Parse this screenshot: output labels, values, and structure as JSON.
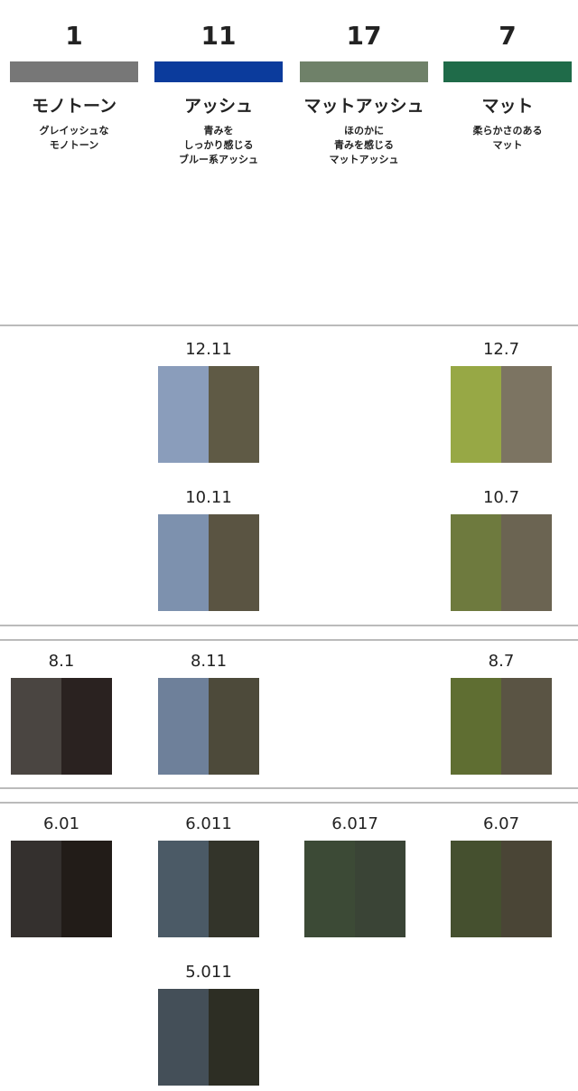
{
  "columns": [
    {
      "number": "1",
      "color": "#777777",
      "name": "モノトーン",
      "description": [
        "グレイッシュな",
        "モノトーン"
      ]
    },
    {
      "number": "11",
      "color": "#0b3b9c",
      "name": "アッシュ",
      "description": [
        "青みを",
        "しっかり感じる",
        "ブルー系アッシュ"
      ]
    },
    {
      "number": "17",
      "color": "#6f8169",
      "name": "マットアッシュ",
      "description": [
        "ほのかに",
        "青みを感じる",
        "マットアッシュ"
      ]
    },
    {
      "number": "7",
      "color": "#1f6b49",
      "name": "マット",
      "description": [
        "柔らかさのある",
        "マット"
      ]
    }
  ],
  "sections": [
    {
      "rows": [
        [
          null,
          {
            "label": "12.11",
            "colors": [
              "#8a9dbb",
              "#5f5a45"
            ]
          },
          null,
          {
            "label": "12.7",
            "colors": [
              "#97a845",
              "#7c7462"
            ]
          }
        ],
        [
          null,
          {
            "label": "10.11",
            "colors": [
              "#7d91ae",
              "#5a5442"
            ]
          },
          null,
          {
            "label": "10.7",
            "colors": [
              "#6e7a3e",
              "#6b6452"
            ]
          }
        ]
      ]
    },
    {
      "rows": [
        [
          {
            "label": "8.1",
            "colors": [
              "#4a4541",
              "#2a2220"
            ]
          },
          {
            "label": "8.11",
            "colors": [
              "#6e809a",
              "#4d4a3a"
            ]
          },
          null,
          {
            "label": "8.7",
            "colors": [
              "#5f6e32",
              "#5a5444"
            ]
          }
        ]
      ]
    },
    {
      "rows": [
        [
          {
            "label": "6.01",
            "colors": [
              "#34302e",
              "#221c18"
            ]
          },
          {
            "label": "6.011",
            "colors": [
              "#4b5a66",
              "#33342a"
            ]
          },
          {
            "label": "6.017",
            "colors": [
              "#3c4a36",
              "#3a4436"
            ]
          },
          {
            "label": "6.07",
            "colors": [
              "#45502f",
              "#4a4536"
            ]
          }
        ],
        [
          null,
          {
            "label": "5.011",
            "colors": [
              "#444f58",
              "#2d2e24"
            ]
          },
          null,
          null
        ]
      ]
    }
  ]
}
